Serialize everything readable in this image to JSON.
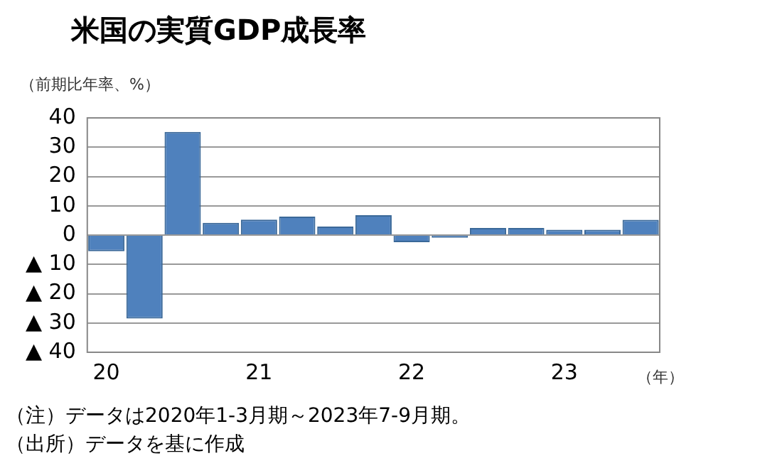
{
  "chart_data": {
    "type": "bar",
    "title": "米国の実質GDP成長率",
    "ylabel": "（前期比年率、%）",
    "xlabel": "（年）",
    "categories": [
      "20",
      null,
      null,
      null,
      "21",
      null,
      null,
      null,
      "22",
      null,
      null,
      null,
      "23",
      null,
      null
    ],
    "values": [
      -5.5,
      -28.5,
      35.2,
      4.2,
      5.3,
      6.3,
      2.9,
      6.8,
      -2.4,
      -0.9,
      2.4,
      2.4,
      1.8,
      1.8,
      5.2
    ],
    "color": "#4f81bd",
    "ylim": [
      -40,
      40
    ],
    "yticks": [
      {
        "value": -40,
        "label": "▲ 40"
      },
      {
        "value": -30,
        "label": "▲ 30"
      },
      {
        "value": -20,
        "label": "▲ 20"
      },
      {
        "value": -10,
        "label": "▲ 10"
      },
      0,
      10,
      20,
      30,
      40
    ],
    "grid": "y",
    "annotations": [
      "（注）データは2020年1-3月期～2023年7-9月期。",
      "（出所）データを基に作成"
    ]
  }
}
